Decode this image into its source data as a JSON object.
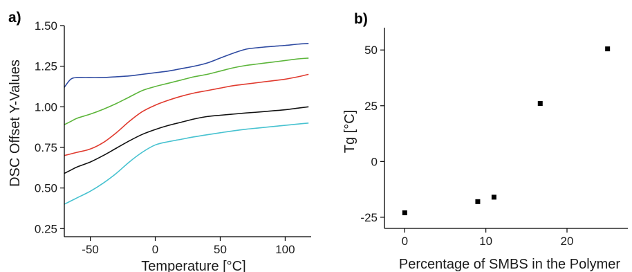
{
  "chart_data": [
    {
      "type": "line",
      "panel_label": "a)",
      "xlabel": "Temperature [°C]",
      "ylabel": "DSC Offset Y-Values",
      "xlim": [
        -70,
        120
      ],
      "ylim": [
        0.2,
        1.5
      ],
      "x_ticks": [
        -50,
        0,
        50,
        100
      ],
      "x_tick_labels": [
        "-50",
        "0",
        "50",
        "100"
      ],
      "y_ticks": [
        0.25,
        0.5,
        0.75,
        1.0,
        1.25,
        1.5
      ],
      "y_tick_labels": [
        "0.25",
        "0.50",
        "0.75",
        "1.00",
        "1.25",
        "1.50"
      ],
      "grid": false,
      "legend": "none",
      "x": [
        -70,
        -65,
        -60,
        -50,
        -40,
        -30,
        -20,
        -10,
        0,
        10,
        20,
        30,
        40,
        50,
        60,
        70,
        80,
        90,
        100,
        110,
        118
      ],
      "series": [
        {
          "color": "#2e4aa1",
          "values": [
            1.12,
            1.17,
            1.18,
            1.18,
            1.18,
            1.185,
            1.19,
            1.2,
            1.21,
            1.22,
            1.235,
            1.25,
            1.27,
            1.3,
            1.33,
            1.355,
            1.365,
            1.372,
            1.378,
            1.386,
            1.39
          ]
        },
        {
          "color": "#5cb53a",
          "values": [
            0.89,
            0.91,
            0.93,
            0.955,
            0.985,
            1.02,
            1.06,
            1.1,
            1.125,
            1.145,
            1.165,
            1.185,
            1.2,
            1.22,
            1.24,
            1.255,
            1.265,
            1.275,
            1.285,
            1.295,
            1.3
          ]
        },
        {
          "color": "#e03a2e",
          "values": [
            0.7,
            0.71,
            0.72,
            0.74,
            0.78,
            0.84,
            0.91,
            0.97,
            1.01,
            1.04,
            1.065,
            1.085,
            1.1,
            1.115,
            1.13,
            1.14,
            1.15,
            1.16,
            1.17,
            1.185,
            1.2
          ]
        },
        {
          "color": "#111111",
          "values": [
            0.59,
            0.61,
            0.63,
            0.66,
            0.7,
            0.745,
            0.79,
            0.83,
            0.86,
            0.885,
            0.905,
            0.925,
            0.94,
            0.948,
            0.955,
            0.962,
            0.968,
            0.975,
            0.982,
            0.992,
            1.0
          ]
        },
        {
          "color": "#47c2d0",
          "values": [
            0.4,
            0.42,
            0.44,
            0.48,
            0.53,
            0.59,
            0.66,
            0.72,
            0.765,
            0.785,
            0.8,
            0.815,
            0.828,
            0.84,
            0.852,
            0.862,
            0.87,
            0.878,
            0.886,
            0.894,
            0.9
          ]
        }
      ]
    },
    {
      "type": "scatter",
      "panel_label": "b)",
      "xlabel": "Percentage of SMBS in the Polymer",
      "ylabel": "Tg [°C]",
      "xlim": [
        -2.5,
        27.5
      ],
      "ylim": [
        -30,
        60
      ],
      "x_ticks": [
        0,
        10,
        20
      ],
      "x_tick_labels": [
        "0",
        "10",
        "20"
      ],
      "y_ticks": [
        -25,
        0,
        25,
        50
      ],
      "y_tick_labels": [
        "-25",
        "0",
        "25",
        "50"
      ],
      "grid": false,
      "legend": "none",
      "marker_color": "#000000",
      "x": [
        0,
        9,
        11,
        16.7,
        25
      ],
      "y": [
        -23,
        -18,
        -16,
        26,
        50.5
      ]
    }
  ]
}
